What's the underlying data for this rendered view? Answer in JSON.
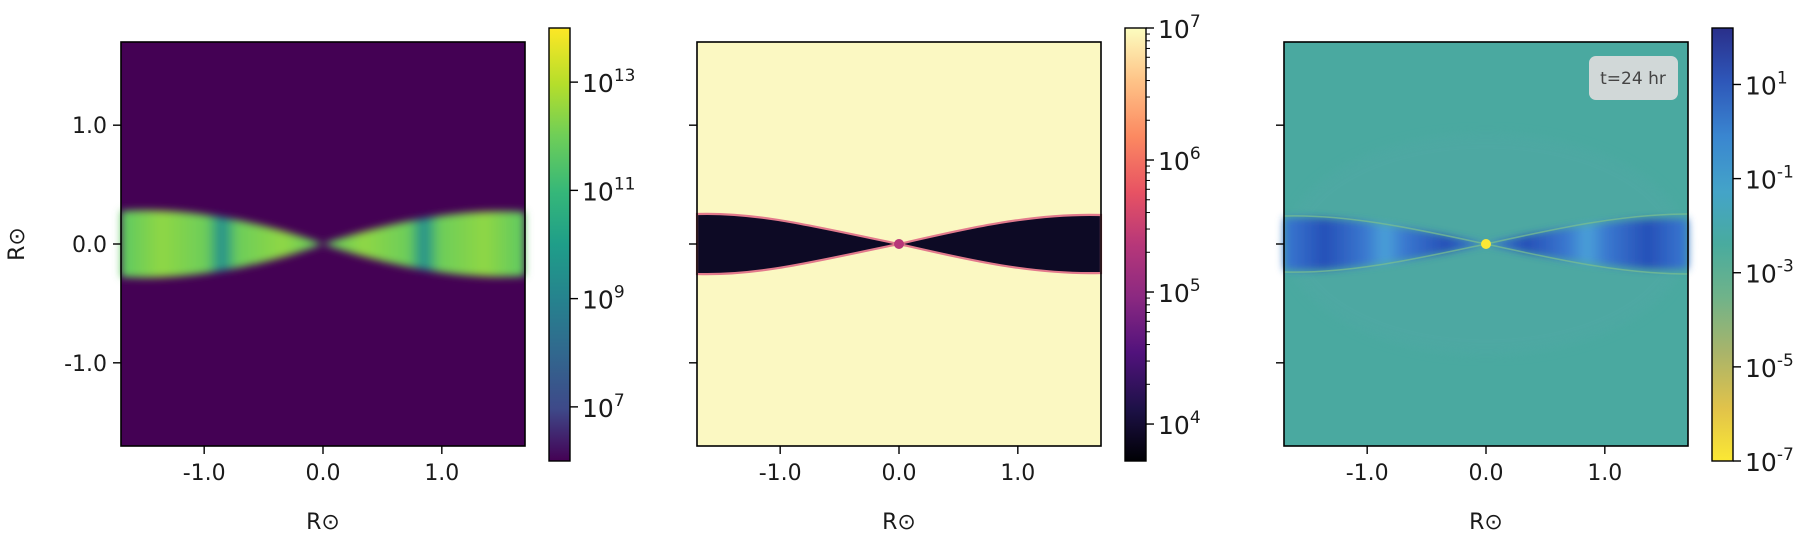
{
  "chart_data": [
    {
      "type": "heatmap",
      "title": "",
      "xlabel": "R⊙",
      "ylabel": "R⊙",
      "xlim": [
        -1.7,
        1.7
      ],
      "ylim": [
        -1.7,
        1.7
      ],
      "x_ticks": [
        "-1.0",
        "0.0",
        "1.0"
      ],
      "x_tick_values": [
        -1.0,
        0.0,
        1.0
      ],
      "y_ticks": [
        "1.0",
        "0.0",
        "-1.0"
      ],
      "y_tick_values": [
        1.0,
        0.0,
        -1.0
      ],
      "colormap": "viridis",
      "log_scale": true,
      "colorbar": {
        "range_exponent": [
          6,
          14
        ],
        "tick_labels": [
          {
            "base": "10",
            "exp": "13",
            "value": 13
          },
          {
            "base": "10",
            "exp": "11",
            "value": 11
          },
          {
            "base": "10",
            "exp": "9",
            "value": 9
          },
          {
            "base": "10",
            "exp": "7",
            "value": 7
          }
        ]
      },
      "background_color": "#440154",
      "feature": "bright wedge (disk) along the midplane y=0, opening away from the centre"
    },
    {
      "type": "heatmap",
      "title": "",
      "xlabel": "R⊙",
      "ylabel": "",
      "xlim": [
        -1.7,
        1.7
      ],
      "ylim": [
        -1.7,
        1.7
      ],
      "x_ticks": [
        "-1.0",
        "0.0",
        "1.0"
      ],
      "x_tick_values": [
        -1.0,
        0.0,
        1.0
      ],
      "y_tick_values": [
        1.0,
        0.0,
        -1.0
      ],
      "colormap": "magma",
      "log_scale": true,
      "colorbar": {
        "range_exponent": [
          3.72,
          7.0
        ],
        "tick_labels": [
          {
            "base": "10",
            "exp": "7",
            "value": 7
          },
          {
            "base": "10",
            "exp": "6",
            "value": 6
          },
          {
            "base": "10",
            "exp": "5",
            "value": 5
          },
          {
            "base": "10",
            "exp": "4",
            "value": 4
          }
        ]
      },
      "background_color": "#fbf8c2",
      "feature": "dark wedge (disk) along the midplane y=0"
    },
    {
      "type": "heatmap",
      "title": "",
      "xlabel": "R⊙",
      "ylabel": "",
      "xlim": [
        -1.7,
        1.7
      ],
      "ylim": [
        -1.7,
        1.7
      ],
      "x_ticks": [
        "-1.0",
        "0.0",
        "1.0"
      ],
      "x_tick_values": [
        -1.0,
        0.0,
        1.0
      ],
      "y_tick_values": [
        1.0,
        0.0,
        -1.0
      ],
      "colormap": "reversed blue-teal-yellow",
      "log_scale": true,
      "annotation": "t=24 hr",
      "colorbar": {
        "range_exponent": [
          -7,
          2.2
        ],
        "tick_labels": [
          {
            "base": "10",
            "exp": "1",
            "value": 1
          },
          {
            "base": "10",
            "exp": "-1",
            "value": -1
          },
          {
            "base": "10",
            "exp": "-3",
            "value": -3
          },
          {
            "base": "10",
            "exp": "-5",
            "value": -5
          },
          {
            "base": "10",
            "exp": "-7",
            "value": -7
          }
        ]
      },
      "background_color": "#4aa9a0",
      "feature": "blue band along the midplane with a yellow point source at the origin"
    }
  ]
}
